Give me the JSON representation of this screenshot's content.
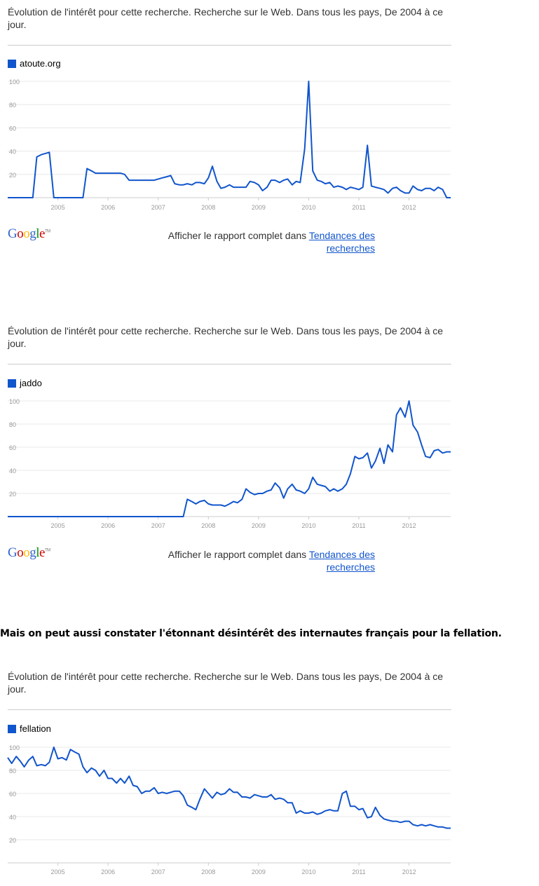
{
  "widgets": [
    {
      "description": "Évolution de l'intérêt pour cette recherche. Recherche sur le Web. Dans tous les pays, De 2004 à ce jour.",
      "report_prefix": "Afficher le rapport complet dans ",
      "report_link": "Tendances des recherches",
      "logo": "Google",
      "logo_tm": "TM"
    },
    {
      "description": "Évolution de l'intérêt pour cette recherche. Recherche sur le Web. Dans tous les pays, De 2004 à ce jour.",
      "report_prefix": "Afficher le rapport complet dans ",
      "report_link": "Tendances des recherches",
      "logo": "Google",
      "logo_tm": "TM"
    },
    {
      "description": "Évolution de l'intérêt pour cette recherche. Recherche sur le Web. Dans tous les pays, De 2004 à ce jour."
    }
  ],
  "sentence": "Mais on peut aussi constater l'étonnant désintérêt des internautes français pour la fellation.",
  "colors": {
    "series": "#1155cc",
    "grid": "#e8e8e8",
    "axis": "#999999",
    "link": "#1155cc"
  },
  "chart_data": [
    {
      "type": "line",
      "series": [
        {
          "name": "atoute.org",
          "x": [
            2004.0,
            2004.08,
            2004.17,
            2004.25,
            2004.33,
            2004.42,
            2004.5,
            2004.58,
            2004.67,
            2004.75,
            2004.83,
            2004.92,
            2005.0,
            2005.08,
            2005.17,
            2005.25,
            2005.33,
            2005.42,
            2005.5,
            2005.58,
            2005.67,
            2005.75,
            2005.83,
            2005.92,
            2006.0,
            2006.08,
            2006.17,
            2006.25,
            2006.33,
            2006.42,
            2006.5,
            2006.58,
            2006.67,
            2006.75,
            2006.83,
            2006.92,
            2007.0,
            2007.08,
            2007.17,
            2007.25,
            2007.33,
            2007.42,
            2007.5,
            2007.58,
            2007.67,
            2007.75,
            2007.83,
            2007.92,
            2008.0,
            2008.08,
            2008.17,
            2008.25,
            2008.33,
            2008.42,
            2008.5,
            2008.58,
            2008.67,
            2008.75,
            2008.83,
            2008.92,
            2009.0,
            2009.08,
            2009.17,
            2009.25,
            2009.33,
            2009.42,
            2009.5,
            2009.58,
            2009.67,
            2009.75,
            2009.83,
            2009.92,
            2010.0,
            2010.08,
            2010.17,
            2010.25,
            2010.33,
            2010.42,
            2010.5,
            2010.58,
            2010.67,
            2010.75,
            2010.83,
            2010.92,
            2011.0,
            2011.08,
            2011.17,
            2011.25,
            2011.33,
            2011.42,
            2011.5,
            2011.58,
            2011.67,
            2011.75,
            2011.83,
            2011.92,
            2012.0,
            2012.08,
            2012.17,
            2012.25,
            2012.33,
            2012.42,
            2012.5,
            2012.58,
            2012.67,
            2012.75,
            2012.83
          ],
          "values": [
            0,
            0,
            0,
            0,
            0,
            0,
            0,
            35,
            37,
            38,
            39,
            0,
            0,
            0,
            0,
            0,
            0,
            0,
            0,
            25,
            23,
            21,
            21,
            21,
            21,
            21,
            21,
            21,
            20,
            15,
            15,
            15,
            15,
            15,
            15,
            15,
            16,
            17,
            18,
            19,
            12,
            11,
            11,
            12,
            11,
            13,
            13,
            12,
            17,
            27,
            14,
            8,
            9,
            11,
            9,
            9,
            9,
            9,
            14,
            13,
            11,
            6,
            9,
            15,
            15,
            13,
            15,
            16,
            11,
            14,
            13,
            42,
            100,
            23,
            15,
            14,
            12,
            13,
            9,
            10,
            9,
            7,
            9,
            8,
            7,
            9,
            45,
            10,
            9,
            8,
            7,
            4,
            8,
            9,
            6,
            4,
            4,
            10,
            7,
            6,
            8,
            8,
            6,
            9,
            7,
            0,
            0
          ]
        }
      ],
      "x_tick_labels": [
        "2005",
        "2006",
        "2007",
        "2008",
        "2009",
        "2010",
        "2011",
        "2012"
      ],
      "y_tick_labels": [
        "20",
        "40",
        "60",
        "80",
        "100"
      ],
      "xlim": [
        2004.0,
        2012.83
      ],
      "ylim": [
        0,
        100
      ],
      "grid": true,
      "legend": "top-left"
    },
    {
      "type": "line",
      "series": [
        {
          "name": "jaddo",
          "x": [
            2004.0,
            2004.08,
            2004.17,
            2004.25,
            2004.33,
            2004.42,
            2004.5,
            2004.58,
            2004.67,
            2004.75,
            2004.83,
            2004.92,
            2005.0,
            2005.08,
            2005.17,
            2005.25,
            2005.33,
            2005.42,
            2005.5,
            2005.58,
            2005.67,
            2005.75,
            2005.83,
            2005.92,
            2006.0,
            2006.08,
            2006.17,
            2006.25,
            2006.33,
            2006.42,
            2006.5,
            2006.58,
            2006.67,
            2006.75,
            2006.83,
            2006.92,
            2007.0,
            2007.08,
            2007.17,
            2007.25,
            2007.33,
            2007.42,
            2007.5,
            2007.58,
            2007.67,
            2007.75,
            2007.83,
            2007.92,
            2008.0,
            2008.08,
            2008.17,
            2008.25,
            2008.33,
            2008.42,
            2008.5,
            2008.58,
            2008.67,
            2008.75,
            2008.83,
            2008.92,
            2009.0,
            2009.08,
            2009.17,
            2009.25,
            2009.33,
            2009.42,
            2009.5,
            2009.58,
            2009.67,
            2009.75,
            2009.83,
            2009.92,
            2010.0,
            2010.08,
            2010.17,
            2010.25,
            2010.33,
            2010.42,
            2010.5,
            2010.58,
            2010.67,
            2010.75,
            2010.83,
            2010.92,
            2011.0,
            2011.08,
            2011.17,
            2011.25,
            2011.33,
            2011.42,
            2011.5,
            2011.58,
            2011.67,
            2011.75,
            2011.83,
            2011.92,
            2012.0,
            2012.08,
            2012.17,
            2012.25,
            2012.33,
            2012.42,
            2012.5,
            2012.58,
            2012.67,
            2012.75,
            2012.83
          ],
          "values": [
            0,
            0,
            0,
            0,
            0,
            0,
            0,
            0,
            0,
            0,
            0,
            0,
            0,
            0,
            0,
            0,
            0,
            0,
            0,
            0,
            0,
            0,
            0,
            0,
            0,
            0,
            0,
            0,
            0,
            0,
            0,
            0,
            0,
            0,
            0,
            0,
            0,
            0,
            0,
            0,
            0,
            0,
            0,
            15,
            13,
            11,
            13,
            14,
            11,
            10,
            10,
            10,
            9,
            11,
            13,
            12,
            15,
            24,
            21,
            19,
            20,
            20,
            22,
            23,
            29,
            25,
            16,
            24,
            28,
            23,
            22,
            20,
            24,
            34,
            28,
            27,
            26,
            22,
            24,
            22,
            24,
            28,
            37,
            52,
            50,
            51,
            55,
            42,
            48,
            59,
            46,
            62,
            56,
            88,
            94,
            86,
            100,
            79,
            73,
            62,
            52,
            51,
            57,
            58,
            55,
            56,
            56
          ]
        }
      ],
      "x_tick_labels": [
        "2005",
        "2006",
        "2007",
        "2008",
        "2009",
        "2010",
        "2011",
        "2012"
      ],
      "y_tick_labels": [
        "20",
        "40",
        "60",
        "80",
        "100"
      ],
      "xlim": [
        2004.0,
        2012.83
      ],
      "ylim": [
        0,
        100
      ],
      "grid": true,
      "legend": "top-left"
    },
    {
      "type": "line",
      "series": [
        {
          "name": "fellation",
          "x": [
            2004.0,
            2004.08,
            2004.17,
            2004.25,
            2004.33,
            2004.42,
            2004.5,
            2004.58,
            2004.67,
            2004.75,
            2004.83,
            2004.92,
            2005.0,
            2005.08,
            2005.17,
            2005.25,
            2005.33,
            2005.42,
            2005.5,
            2005.58,
            2005.67,
            2005.75,
            2005.83,
            2005.92,
            2006.0,
            2006.08,
            2006.17,
            2006.25,
            2006.33,
            2006.42,
            2006.5,
            2006.58,
            2006.67,
            2006.75,
            2006.83,
            2006.92,
            2007.0,
            2007.08,
            2007.17,
            2007.25,
            2007.33,
            2007.42,
            2007.5,
            2007.58,
            2007.67,
            2007.75,
            2007.83,
            2007.92,
            2008.0,
            2008.08,
            2008.17,
            2008.25,
            2008.33,
            2008.42,
            2008.5,
            2008.58,
            2008.67,
            2008.75,
            2008.83,
            2008.92,
            2009.0,
            2009.08,
            2009.17,
            2009.25,
            2009.33,
            2009.42,
            2009.5,
            2009.58,
            2009.67,
            2009.75,
            2009.83,
            2009.92,
            2010.0,
            2010.08,
            2010.17,
            2010.25,
            2010.33,
            2010.42,
            2010.5,
            2010.58,
            2010.67,
            2010.75,
            2010.83,
            2010.92,
            2011.0,
            2011.08,
            2011.17,
            2011.25,
            2011.33,
            2011.42,
            2011.5,
            2011.58,
            2011.67,
            2011.75,
            2011.83,
            2011.92,
            2012.0,
            2012.08,
            2012.17,
            2012.25,
            2012.33,
            2012.42,
            2012.5,
            2012.58,
            2012.67,
            2012.75,
            2012.83
          ],
          "values": [
            91,
            86,
            92,
            88,
            83,
            89,
            92,
            84,
            85,
            84,
            87,
            100,
            90,
            91,
            89,
            98,
            96,
            94,
            83,
            78,
            82,
            80,
            75,
            80,
            73,
            73,
            69,
            73,
            69,
            75,
            67,
            66,
            60,
            62,
            62,
            65,
            60,
            61,
            60,
            61,
            62,
            62,
            58,
            50,
            48,
            46,
            55,
            64,
            60,
            56,
            61,
            59,
            60,
            64,
            61,
            61,
            57,
            57,
            56,
            59,
            58,
            57,
            57,
            59,
            55,
            56,
            55,
            52,
            52,
            43,
            45,
            43,
            43,
            44,
            42,
            43,
            45,
            46,
            45,
            45,
            60,
            62,
            49,
            49,
            46,
            47,
            39,
            40,
            48,
            41,
            38,
            37,
            36,
            36,
            35,
            36,
            36,
            33,
            32,
            33,
            32,
            33,
            32,
            31,
            31,
            30,
            30
          ]
        }
      ],
      "x_tick_labels": [
        "2005",
        "2006",
        "2007",
        "2008",
        "2009",
        "2010",
        "2011",
        "2012"
      ],
      "y_tick_labels": [
        "20",
        "40",
        "60",
        "80",
        "100"
      ],
      "xlim": [
        2004.0,
        2012.83
      ],
      "ylim": [
        0,
        100
      ],
      "grid": true,
      "legend": "top-left"
    }
  ]
}
